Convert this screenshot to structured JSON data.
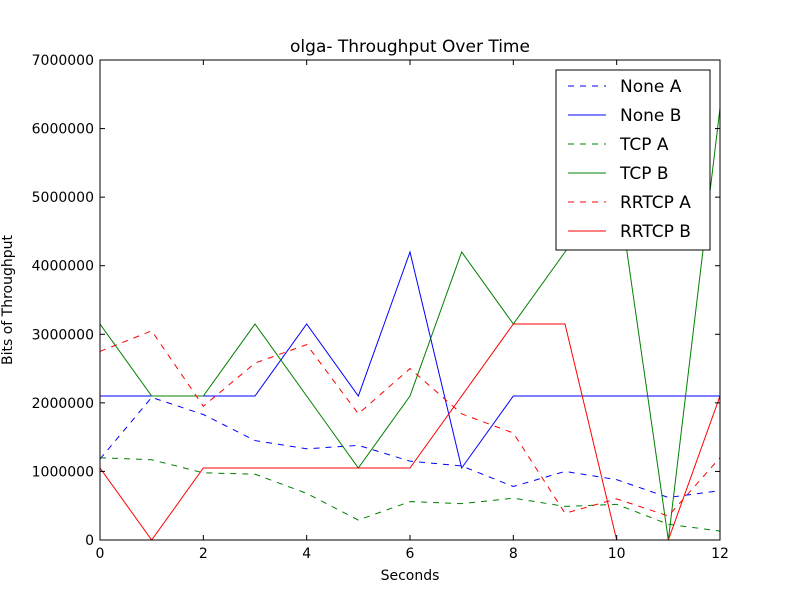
{
  "chart_data": {
    "type": "line",
    "title": "olga- Throughput Over Time",
    "xlabel": "Seconds",
    "ylabel": "Bits of Throughput",
    "xlim": [
      0,
      12
    ],
    "ylim": [
      0,
      7000000
    ],
    "xticks": [
      "0",
      "2",
      "4",
      "6",
      "8",
      "10",
      "12"
    ],
    "yticks": [
      "0",
      "1000000",
      "2000000",
      "3000000",
      "4000000",
      "5000000",
      "6000000",
      "7000000"
    ],
    "x": [
      0,
      1,
      2,
      3,
      4,
      5,
      6,
      7,
      8,
      9,
      10,
      11,
      12
    ],
    "legend_position": "top-right",
    "grid": false,
    "series": [
      {
        "name": "None A",
        "color": "#0000ff",
        "dash": true,
        "values": [
          1180000,
          2080000,
          1830000,
          1450000,
          1330000,
          1380000,
          1150000,
          1080000,
          780000,
          1000000,
          880000,
          620000,
          720000
        ]
      },
      {
        "name": "None B",
        "color": "#0000ff",
        "dash": false,
        "values": [
          2100000,
          2100000,
          2100000,
          2100000,
          3150000,
          2100000,
          4200000,
          1050000,
          2100000,
          2100000,
          2100000,
          2100000,
          2100000
        ]
      },
      {
        "name": "TCP A",
        "color": "#008000",
        "dash": true,
        "values": [
          1200000,
          1170000,
          980000,
          960000,
          680000,
          290000,
          560000,
          530000,
          610000,
          490000,
          520000,
          230000,
          130000
        ]
      },
      {
        "name": "TCP B",
        "color": "#008000",
        "dash": false,
        "values": [
          3150000,
          2100000,
          2100000,
          3150000,
          2100000,
          1050000,
          2100000,
          4200000,
          3150000,
          4200000,
          5250000,
          0,
          6300000
        ]
      },
      {
        "name": "RRTCP A",
        "color": "#ff0000",
        "dash": true,
        "values": [
          2750000,
          3050000,
          1950000,
          2580000,
          2850000,
          1840000,
          2500000,
          1840000,
          1560000,
          390000,
          600000,
          350000,
          1200000
        ]
      },
      {
        "name": "RRTCP B",
        "color": "#ff0000",
        "dash": false,
        "values": [
          1050000,
          0,
          1050000,
          1050000,
          1050000,
          1050000,
          1050000,
          2100000,
          3150000,
          3150000,
          0,
          0,
          2100000
        ]
      }
    ]
  }
}
